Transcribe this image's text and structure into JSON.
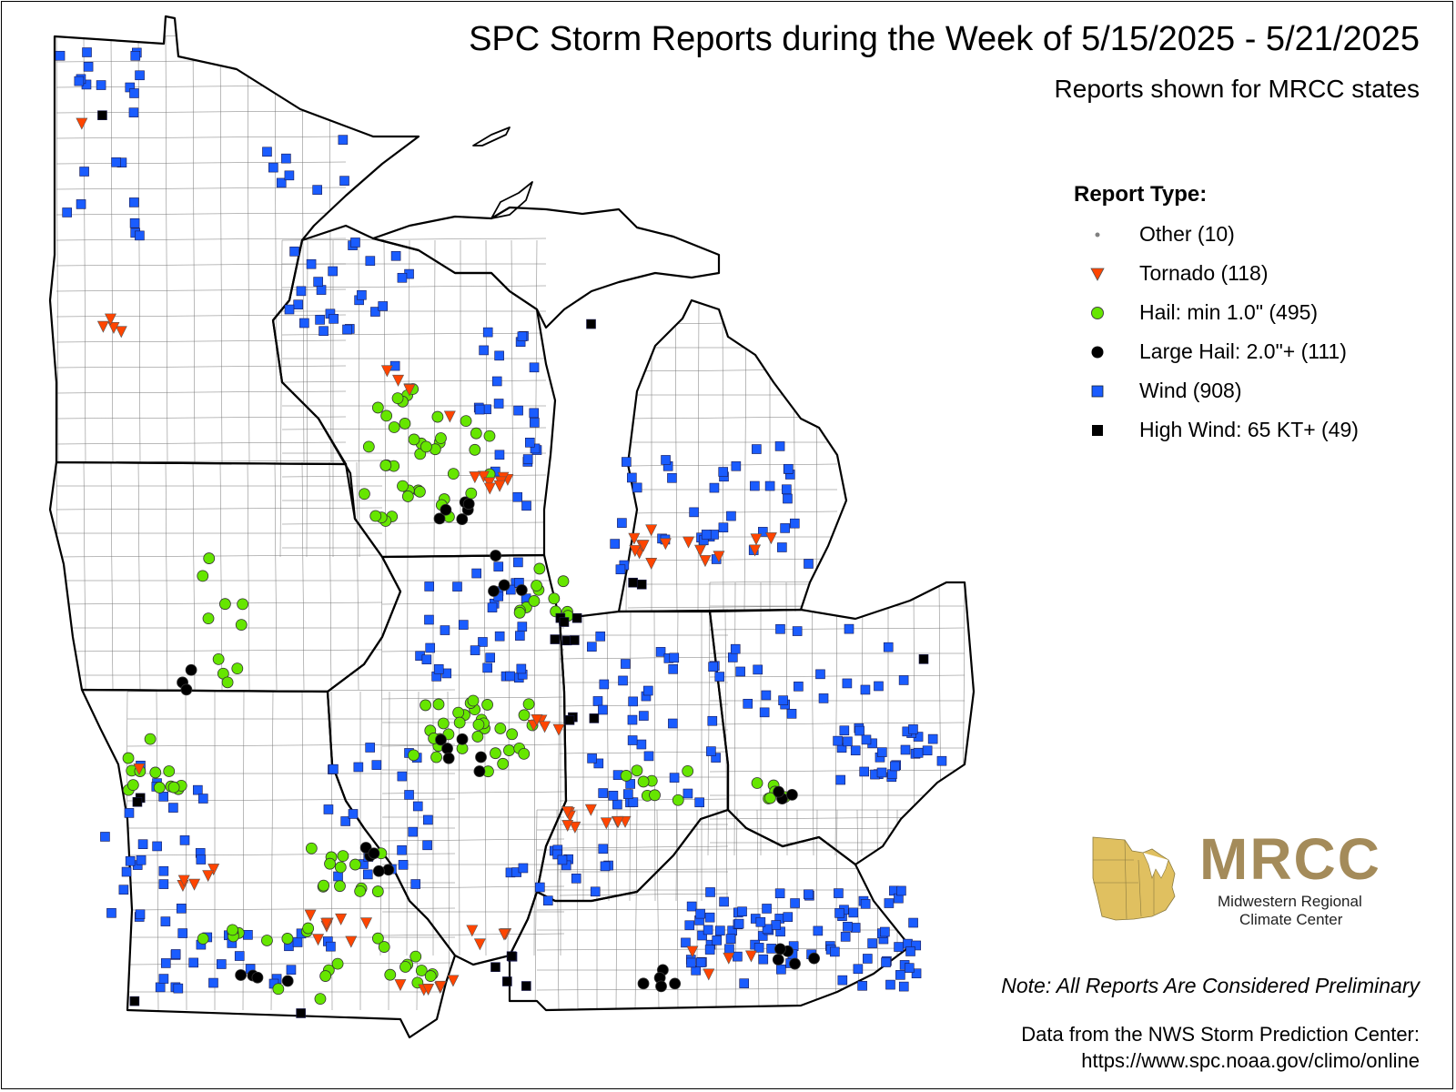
{
  "title": "SPC Storm Reports during the Week of 5/15/2025 - 5/21/2025",
  "subtitle": "Reports shown for MRCC states",
  "legend": {
    "title": "Report Type:",
    "items": [
      {
        "key": "other",
        "label": "Other (10)",
        "symbol": "small-dot",
        "color": "#808080"
      },
      {
        "key": "tornado",
        "label": "Tornado (118)",
        "symbol": "down-triangle",
        "color": "#ff4500"
      },
      {
        "key": "hail",
        "label": "Hail: min 1.0\" (495)",
        "symbol": "circle",
        "color": "#66e600"
      },
      {
        "key": "large_hail",
        "label": "Large Hail: 2.0\"+ (111)",
        "symbol": "circle",
        "color": "#000000"
      },
      {
        "key": "wind",
        "label": "Wind (908)",
        "symbol": "square",
        "color": "#1a5cff"
      },
      {
        "key": "high_wind",
        "label": "High Wind: 65 KT+ (49)",
        "symbol": "square",
        "color": "#000000"
      }
    ]
  },
  "note": "Note: All Reports Are Considered Preliminary",
  "source_line1": "Data from the NWS Storm Prediction Center:",
  "source_line2": "https://www.spc.noaa.gov/climo/online",
  "logo": {
    "text": "MRCC",
    "subtitle_line1": "Midwestern Regional",
    "subtitle_line2": "Climate Center",
    "color": "#a48b5a",
    "map_color": "#e0c060"
  },
  "colors": {
    "tornado": "#ff4500",
    "hail": "#66e600",
    "large_hail": "#000000",
    "wind": "#1a5cff",
    "high_wind": "#000000",
    "other": "#808080"
  }
}
